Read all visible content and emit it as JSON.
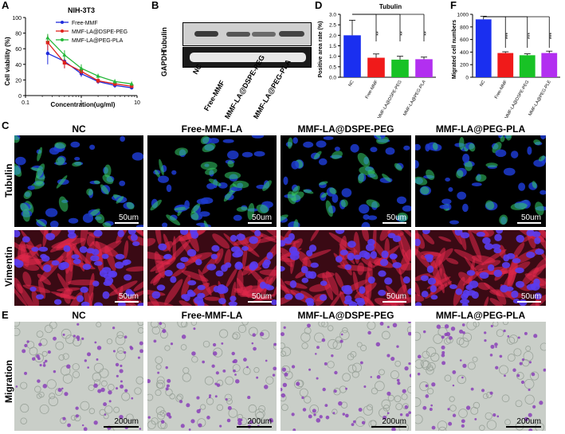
{
  "panels": {
    "A": {
      "letter": "A",
      "title": "NIH-3T3",
      "ylabel": "Cell viability (%)",
      "xlabel": "Concentration(ug/ml)",
      "yticks": [
        "0",
        "20",
        "40",
        "60",
        "80",
        "100"
      ],
      "xticks": [
        "0.1",
        "1",
        "10"
      ],
      "legend": [
        "Free-MMF",
        "MMF-LA@DSPE-PEG",
        "MMF-LA@PEG-PLA"
      ]
    },
    "B": {
      "letter": "B",
      "blot_labels": [
        "Tubulin",
        "GAPDH"
      ],
      "lanes": [
        "NC",
        "Free-MMF",
        "MMF-LA@DSPE-PEG",
        "MMF-LA@PEG-PLA"
      ]
    },
    "D": {
      "letter": "D",
      "title": "Tubulin",
      "ylabel": "Positive area rate (%)",
      "yticks": [
        "0.0",
        "0.5",
        "1.0",
        "1.5",
        "2.0",
        "2.5",
        "3.0"
      ],
      "categories": [
        "NC",
        "Free-MMF",
        "MMF-LA@DSPE-PEG",
        "MMF-LA@PEG-PLA"
      ],
      "sig": [
        "**",
        "**",
        "**"
      ]
    },
    "F": {
      "letter": "F",
      "ylabel": "Migrated cell numbers",
      "yticks": [
        "0",
        "200",
        "400",
        "600",
        "800",
        "1000"
      ],
      "categories": [
        "NC",
        "Free-MMF",
        "MMF-LA@DSPE-PEG",
        "MMF-LA@PEG-PLE"
      ],
      "sig": [
        "***",
        "***",
        "***"
      ]
    },
    "C": {
      "letter": "C",
      "conditions": [
        "NC",
        "Free-MMF-LA",
        "MMF-LA@DSPE-PEG",
        "MMF-LA@PEG-PLA"
      ],
      "rows": [
        "Tubulin",
        "Vimentin"
      ],
      "scale": "50um"
    },
    "E": {
      "letter": "E",
      "conditions": [
        "NC",
        "Free-MMF-LA",
        "MMF-LA@DSPE-PEG",
        "MMF-LA@PEG-PLA"
      ],
      "rows": [
        "Migration"
      ],
      "scale": "200um"
    }
  },
  "colors": {
    "blue": "#1f2bdc",
    "red": "#e0221c",
    "green": "#26b83a",
    "purple": "#b03de0",
    "bar_blue": "#1a2ff0",
    "bar_red": "#f01a1a",
    "bar_green": "#18c225",
    "bar_purple": "#b22ff0"
  },
  "chart_data": [
    {
      "type": "line",
      "title": "NIH-3T3",
      "xlabel": "Concentration(ug/ml)",
      "ylabel": "Cell viability (%)",
      "xscale": "log",
      "xlim": [
        0.1,
        10
      ],
      "ylim": [
        0,
        100
      ],
      "x": [
        0.25,
        0.5,
        1,
        2,
        4,
        8
      ],
      "series": [
        {
          "name": "Free-MMF",
          "values": [
            54,
            44,
            28,
            18,
            13,
            10
          ],
          "errors": [
            14,
            9,
            4,
            3,
            3,
            2
          ]
        },
        {
          "name": "MMF-LA@DSPE-PEG",
          "values": [
            68,
            42,
            31,
            19,
            15,
            12
          ],
          "errors": [
            10,
            7,
            4,
            3,
            3,
            2
          ]
        },
        {
          "name": "MMF-LA@PEG-PLA",
          "values": [
            74,
            52,
            35,
            25,
            18,
            15
          ],
          "errors": [
            5,
            6,
            5,
            3,
            3,
            3
          ]
        }
      ]
    },
    {
      "type": "bar",
      "title": "Tubulin",
      "ylabel": "Positive area rate (%)",
      "ylim": [
        0,
        3.0
      ],
      "categories": [
        "NC",
        "Free-MMF",
        "MMF-LA@DSPE-PEG",
        "MMF-LA@PEG-PLA"
      ],
      "values": [
        2.0,
        0.93,
        0.84,
        0.86
      ],
      "errors": [
        0.72,
        0.18,
        0.16,
        0.1
      ]
    },
    {
      "type": "bar",
      "title": "",
      "ylabel": "Migrated cell numbers",
      "ylim": [
        0,
        1000
      ],
      "categories": [
        "NC",
        "Free-MMF",
        "MMF-LA@DSPE-PEG",
        "MMF-LA@PEG-PLE"
      ],
      "values": [
        920,
        385,
        350,
        385
      ],
      "errors": [
        50,
        20,
        22,
        30
      ]
    }
  ]
}
